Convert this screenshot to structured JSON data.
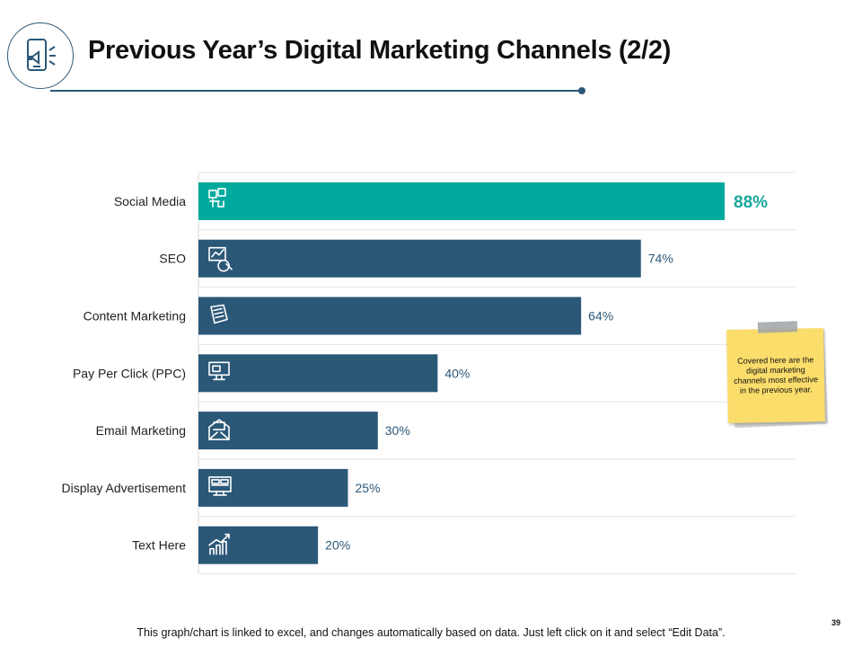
{
  "slide": {
    "title": "Previous Year’s Digital Marketing Channels (2/2)",
    "logo_icon": "mobile-megaphone-icon",
    "footer": "This graph/chart is linked to excel, and changes automatically based on data. Just left click on it and select “Edit Data”.",
    "page_number": "39"
  },
  "note": {
    "text": "Covered here are the digital marketing channels most effective in the previous year."
  },
  "colors": {
    "highlight": "#00a99d",
    "bar": "#2c5878",
    "highlight_label": "#17a89c",
    "label": "#2c5878"
  },
  "chart_data": {
    "type": "bar",
    "orientation": "horizontal",
    "categories": [
      "Social Media",
      "SEO",
      "Content Marketing",
      "Pay Per Click (PPC)",
      "Email Marketing",
      "Display Advertisement",
      "Text Here"
    ],
    "values": [
      88,
      74,
      64,
      40,
      30,
      25,
      20
    ],
    "value_labels": [
      "88%",
      "74%",
      "64%",
      "40%",
      "30%",
      "25%",
      "20%"
    ],
    "icons": [
      "social-media-icon",
      "seo-icon",
      "content-icon",
      "ppc-icon",
      "email-icon",
      "display-icon",
      "growth-chart-icon"
    ],
    "highlight_index": 0,
    "xlim": [
      0,
      100
    ],
    "grid": true,
    "title": "",
    "xlabel": "",
    "ylabel": ""
  }
}
